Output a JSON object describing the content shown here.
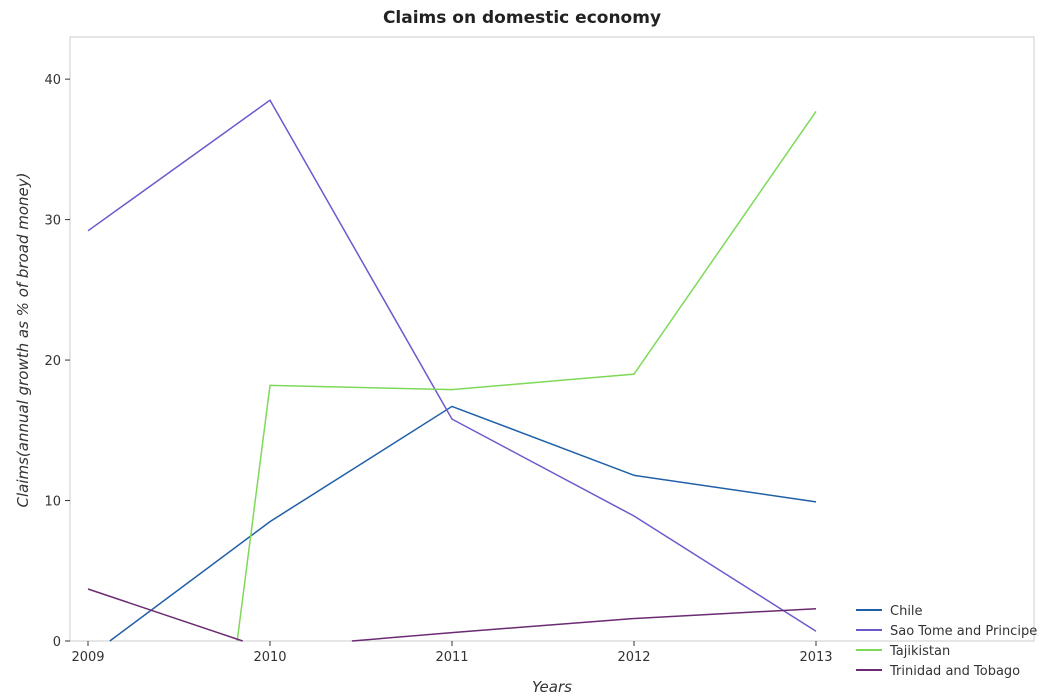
{
  "chart_data": {
    "type": "line",
    "title": "Claims on domestic economy",
    "xlabel": "Years",
    "ylabel": "Claims(annual growth as % of broad money)",
    "categories": [
      "2009",
      "2010",
      "2011",
      "2012",
      "2013"
    ],
    "ylim": [
      0,
      43
    ],
    "yticks": [
      "0",
      "10",
      "20",
      "30",
      "40"
    ],
    "grid": false,
    "legend_position": "bottom-right",
    "series": [
      {
        "name": "Chile",
        "color": "#1f5fa8",
        "values": [
          null,
          8.5,
          16.7,
          11.8,
          9.9
        ],
        "lead_in_from_zero_at": 0.12
      },
      {
        "name": "Sao Tome and Principe",
        "color": "#6a5acd",
        "values": [
          29.2,
          38.5,
          15.8,
          8.9,
          0.7
        ]
      },
      {
        "name": "Tajikistan",
        "color": "#7ed957",
        "values": [
          null,
          18.2,
          17.9,
          19.0,
          37.7
        ],
        "lead_in_from_zero_at": 0.82
      },
      {
        "name": "Trinidad and Tobago",
        "color": "#6b2a72",
        "values": [
          3.7,
          0.0,
          0.6,
          1.6,
          2.3
        ],
        "zero_reached_at": 0.85,
        "zero_left_at": 1.45
      }
    ]
  }
}
